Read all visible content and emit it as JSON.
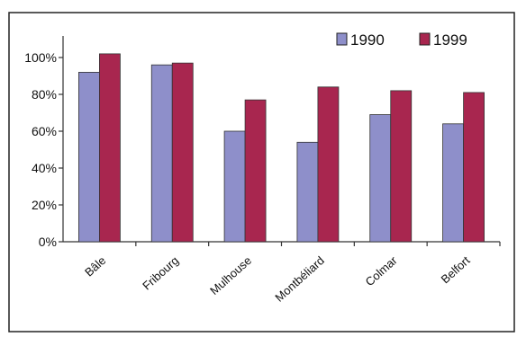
{
  "chart_data": {
    "type": "bar",
    "title": "",
    "xlabel": "",
    "ylabel": "",
    "categories": [
      "Bâle",
      "Fribourg",
      "Mulhouse",
      "Montbéliard",
      "Colmar",
      "Belfort"
    ],
    "series": [
      {
        "name": "1990",
        "values": [
          92,
          96,
          60,
          54,
          69,
          64
        ],
        "color": "#8e8fca"
      },
      {
        "name": "1999",
        "values": [
          102,
          97,
          77,
          84,
          82,
          81
        ],
        "color": "#a8264f"
      }
    ],
    "ylim": [
      0,
      100
    ],
    "yticks": [
      0,
      20,
      40,
      60,
      80,
      100
    ],
    "ytick_labels": [
      "0%",
      "20%",
      "40%",
      "60%",
      "80%",
      "100%"
    ],
    "legend_position": "top-right",
    "grid": false
  }
}
